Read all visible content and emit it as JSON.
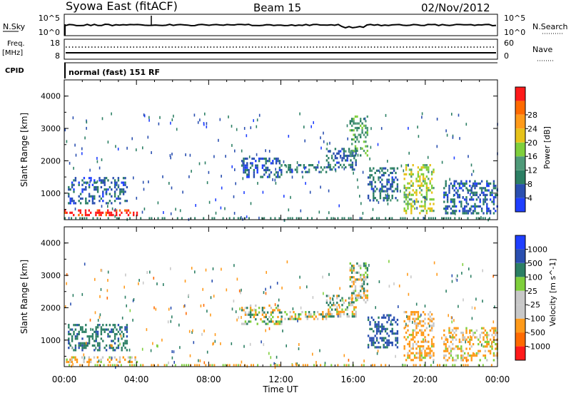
{
  "header": {
    "station": "Syowa East (fitACF)",
    "beam": "Beam 15",
    "date": "02/Nov/2012"
  },
  "aux_panels": {
    "nsky_label": "N.Sky",
    "nsky_ticks": [
      "10^5",
      "10^0"
    ],
    "nsearch_label": "N.Search",
    "nsearch_ticks": [
      "10^5",
      "10^0"
    ],
    "freq_label_1": "Freq.",
    "freq_label_2": "[MHz]",
    "freq_ticks": [
      "18",
      "8"
    ],
    "nave_label": "Nave",
    "nave_ticks": [
      "60",
      "0"
    ],
    "cpid_label": "CPID",
    "cpid_text": "normal (fast) 151 RF"
  },
  "colors": {
    "power_scale": [
      "#1f3fff",
      "#2a4fb0",
      "#2c7f64",
      "#4f9a79",
      "#7fcf3c",
      "#e6c21a",
      "#ff9a1a",
      "#ff6a00",
      "#ff1a1a"
    ],
    "velocity_scale": [
      "#ff1a1a",
      "#ff6a00",
      "#ff9a1a",
      "#c8c8c8",
      "#c8c8c8",
      "#7fcf3c",
      "#2c7f64",
      "#2a4fb0",
      "#1f3fff"
    ],
    "low_range_orange": "#ff9a1a"
  },
  "chart_data": [
    {
      "type": "heatmap",
      "panel": "power",
      "ylabel": "Slant Range [km]",
      "xlabel": "",
      "xticks": [
        "00:00",
        "04:00",
        "08:00",
        "12:00",
        "16:00",
        "20:00",
        "00:00"
      ],
      "yticks": [
        "1000",
        "2000",
        "3000",
        "4000"
      ],
      "xlim_hours": [
        0,
        24
      ],
      "ylim_km": [
        180,
        4500
      ],
      "colorbar_label": "Power [dB]",
      "colorbar_ticks": [
        "4",
        "8",
        "12",
        "16",
        "20",
        "24",
        "28"
      ],
      "colorbar_range": [
        0,
        30
      ],
      "echo_regions": [
        {
          "t0": 0.0,
          "t1": 4.0,
          "r0": 300,
          "r1": 500,
          "value": 28
        },
        {
          "t0": 0.2,
          "t1": 3.5,
          "r0": 700,
          "r1": 1500,
          "value": 6
        },
        {
          "t0": 9.8,
          "t1": 12.0,
          "r0": 1500,
          "r1": 2100,
          "value": 6
        },
        {
          "t0": 12.0,
          "t1": 14.5,
          "r0": 1650,
          "r1": 1900,
          "value": 8
        },
        {
          "t0": 14.5,
          "t1": 16.2,
          "r0": 1700,
          "r1": 2400,
          "value": 7
        },
        {
          "t0": 15.8,
          "t1": 16.8,
          "r0": 2200,
          "r1": 3400,
          "value": 12
        },
        {
          "t0": 16.8,
          "t1": 18.5,
          "r0": 800,
          "r1": 1800,
          "value": 7
        },
        {
          "t0": 18.8,
          "t1": 20.5,
          "r0": 400,
          "r1": 1900,
          "value": 16
        },
        {
          "t0": 21.0,
          "t1": 24.0,
          "r0": 400,
          "r1": 1400,
          "value": 6
        }
      ]
    },
    {
      "type": "heatmap",
      "panel": "velocity",
      "ylabel": "Slant Range [km]",
      "xlabel": "Time UT",
      "xticks": [
        "00:00",
        "04:00",
        "08:00",
        "12:00",
        "16:00",
        "20:00",
        "00:00"
      ],
      "yticks": [
        "1000",
        "2000",
        "3000",
        "4000"
      ],
      "xlim_hours": [
        0,
        24
      ],
      "ylim_km": [
        180,
        4500
      ],
      "colorbar_label": "Velocity [m s^-1]",
      "colorbar_ticks": [
        "1000",
        "500",
        "100",
        "25",
        "-25",
        "-100",
        "-500",
        "-1000"
      ],
      "echo_regions": [
        {
          "t0": 0.0,
          "t1": 4.0,
          "r0": 300,
          "r1": 500,
          "value": -150
        },
        {
          "t0": 0.2,
          "t1": 3.5,
          "r0": 700,
          "r1": 1500,
          "value": 400
        },
        {
          "t0": 9.8,
          "t1": 12.0,
          "r0": 1500,
          "r1": 2100,
          "value": 0
        },
        {
          "t0": 12.0,
          "t1": 14.5,
          "r0": 1650,
          "r1": 1900,
          "value": 0
        },
        {
          "t0": 14.5,
          "t1": 16.2,
          "r0": 1700,
          "r1": 2400,
          "value": 0
        },
        {
          "t0": 15.8,
          "t1": 16.8,
          "r0": 2200,
          "r1": 3400,
          "value": 0
        },
        {
          "t0": 16.8,
          "t1": 18.5,
          "r0": 800,
          "r1": 1800,
          "value": 600
        },
        {
          "t0": 18.8,
          "t1": 20.5,
          "r0": 400,
          "r1": 1900,
          "value": -200
        },
        {
          "t0": 21.0,
          "t1": 24.0,
          "r0": 400,
          "r1": 1400,
          "value": -150
        }
      ]
    }
  ],
  "xlabel": "Time UT"
}
